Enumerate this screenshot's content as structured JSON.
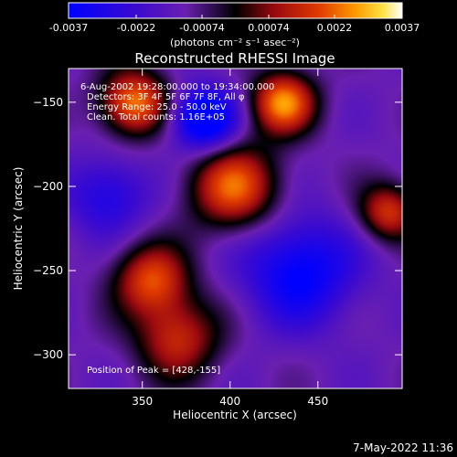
{
  "chart_data": {
    "type": "heatmap",
    "title": "Reconstructed RHESSI Image",
    "xlabel": "Heliocentric X (arcsec)",
    "ylabel": "Heliocentric Y (arcsec)",
    "xlim": [
      308,
      498
    ],
    "ylim": [
      -320,
      -130
    ],
    "x_ticks": [
      350,
      400,
      450
    ],
    "y_ticks": [
      -150,
      -200,
      -250,
      -300
    ],
    "colorbar": {
      "min": -0.0037,
      "max": 0.0037,
      "tick_values": [
        -0.0037,
        -0.0022,
        -0.00074,
        0.00074,
        0.0022,
        0.0037
      ],
      "tick_labels": [
        "-0.0037",
        "-0.0022",
        "-0.00074",
        "0.00074",
        "0.0022",
        "0.0037"
      ],
      "unit_label": "(photons cm⁻² s⁻¹ asec⁻²)"
    },
    "annotations": [
      "6-Aug-2002 19:28:00.000 to 19:34:00.000",
      "Detectors: 3F 4F 5F 6F 7F 8F, All φ",
      "Energy Range: 25.0 - 50.0 keV",
      "Clean. Total counts: 1.16E+05"
    ],
    "peak_label": "Position of Peak = [428,-155]",
    "peak_position": [
      428,
      -155
    ],
    "sources": [
      {
        "x": 345,
        "y": -150,
        "amplitude": 0.0036,
        "sigma": 14
      },
      {
        "x": 430,
        "y": -150,
        "amplitude": 0.0037,
        "sigma": 13
      },
      {
        "x": 402,
        "y": -200,
        "amplitude": 0.0033,
        "sigma": 18
      },
      {
        "x": 355,
        "y": -255,
        "amplitude": 0.003,
        "sigma": 15
      },
      {
        "x": 370,
        "y": -290,
        "amplitude": 0.0026,
        "sigma": 17
      },
      {
        "x": 490,
        "y": -215,
        "amplitude": 0.0028,
        "sigma": 12
      },
      {
        "x": 385,
        "y": -160,
        "amplitude": -0.0036,
        "sigma": 13
      },
      {
        "x": 440,
        "y": -250,
        "amplitude": -0.0026,
        "sigma": 22
      },
      {
        "x": 330,
        "y": -205,
        "amplitude": -0.0018,
        "sigma": 16
      }
    ]
  },
  "footer": {
    "timestamp": "7-May-2022 11:36"
  }
}
